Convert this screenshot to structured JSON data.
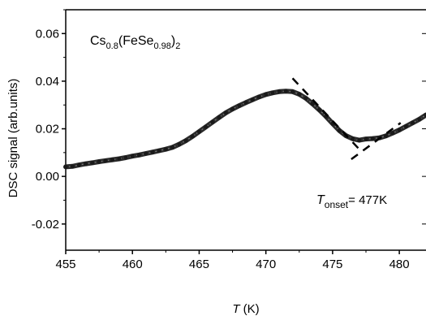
{
  "chart_data": {
    "type": "line",
    "ylabel": "DSC signal (arb.units)",
    "xlim": [
      455,
      482
    ],
    "ylim": [
      -0.031,
      0.07
    ],
    "x_ticks": [
      455,
      460,
      465,
      470,
      475,
      480
    ],
    "x_tick_labels": [
      "455",
      "460",
      "465",
      "470",
      "475",
      "480"
    ],
    "y_ticks": [
      -0.02,
      0.0,
      0.02,
      0.04,
      0.06
    ],
    "y_tick_labels": [
      "-0.02",
      "0.00",
      "0.02",
      "0.04",
      "0.06"
    ],
    "grid": false,
    "series": [
      {
        "x": [
          455.0,
          455.5,
          456.0,
          456.5,
          457.0,
          457.5,
          458.0,
          458.5,
          459.0,
          459.5,
          460.0,
          460.5,
          461.0,
          461.5,
          462.0,
          462.5,
          463.0,
          463.5,
          464.0,
          464.5,
          465.0,
          465.5,
          466.0,
          466.5,
          467.0,
          467.5,
          468.0,
          468.5,
          469.0,
          469.5,
          470.0,
          470.5,
          471.0,
          471.5,
          472.0,
          472.5,
          473.0,
          473.5,
          474.0,
          474.5,
          475.0,
          475.5,
          476.0,
          476.5,
          477.0,
          477.5,
          478.0,
          478.5,
          479.0,
          479.5,
          480.0,
          480.5,
          481.0,
          481.5,
          482.0
        ],
        "y": [
          0.004,
          0.0042,
          0.0048,
          0.0053,
          0.0057,
          0.0062,
          0.0066,
          0.007,
          0.0074,
          0.0079,
          0.0085,
          0.009,
          0.0096,
          0.0102,
          0.0108,
          0.0114,
          0.0122,
          0.0135,
          0.015,
          0.0168,
          0.0188,
          0.0208,
          0.0228,
          0.0248,
          0.0267,
          0.0283,
          0.0297,
          0.031,
          0.0322,
          0.0334,
          0.0344,
          0.0351,
          0.0356,
          0.0358,
          0.0356,
          0.0345,
          0.0328,
          0.0305,
          0.028,
          0.0252,
          0.0222,
          0.0193,
          0.0171,
          0.0158,
          0.0152,
          0.0157,
          0.0159,
          0.0162,
          0.017,
          0.0182,
          0.0195,
          0.021,
          0.0225,
          0.024,
          0.0258
        ]
      }
    ],
    "tangent_lines": [
      {
        "x": [
          472.0,
          477.2
        ],
        "y": [
          0.0412,
          0.0102
        ]
      },
      {
        "x": [
          476.4,
          480.1
        ],
        "y": [
          0.0072,
          0.0225
        ]
      }
    ]
  },
  "annotations": {
    "formula_base": "Cs",
    "formula_sub1": "0.8",
    "formula_mid": "(FeSe",
    "formula_sub2": "0.98",
    "formula_close": ")",
    "formula_sub3": "2",
    "xlabel_italic": "T",
    "xlabel_unit": " (K)",
    "onset_T": "T",
    "onset_sub": "onset",
    "onset_value": "= 477K"
  }
}
